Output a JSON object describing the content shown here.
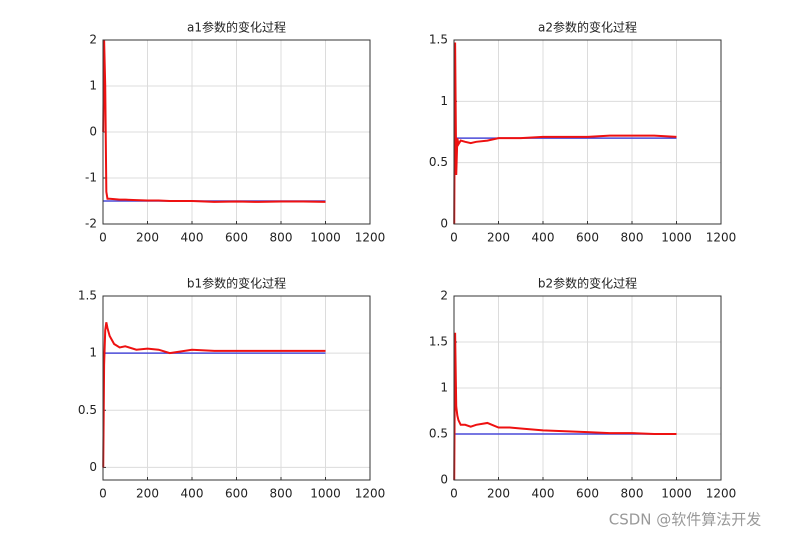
{
  "chart_data": [
    {
      "type": "line",
      "title": "a1参数的变化过程",
      "x": [
        1,
        5,
        10,
        15,
        20,
        30,
        50,
        75,
        100,
        150,
        200,
        250,
        300,
        400,
        500,
        600,
        700,
        800,
        900,
        1000
      ],
      "series": [
        {
          "color": "#4a4ad8",
          "values": [
            -1.5,
            -1.5,
            -1.5,
            -1.5,
            -1.5,
            -1.5,
            -1.5,
            -1.5,
            -1.5,
            -1.5,
            -1.5,
            -1.5,
            -1.5,
            -1.5,
            -1.5,
            -1.5,
            -1.5,
            -1.5,
            -1.5,
            -1.5
          ]
        },
        {
          "color": "#ee1111",
          "values": [
            0,
            2,
            1.0,
            -1.3,
            -1.45,
            -1.45,
            -1.46,
            -1.47,
            -1.47,
            -1.48,
            -1.49,
            -1.49,
            -1.5,
            -1.5,
            -1.52,
            -1.51,
            -1.52,
            -1.51,
            -1.51,
            -1.52
          ]
        }
      ],
      "xlim": [
        0,
        1200
      ],
      "xticks": [
        0,
        200,
        400,
        600,
        800,
        1000,
        1200
      ],
      "ylim": [
        -2,
        2
      ],
      "yticks": [
        -2,
        -1,
        0,
        1,
        2
      ],
      "grid": true
    },
    {
      "type": "line",
      "title": "a2参数的变化过程",
      "x": [
        1,
        5,
        10,
        15,
        20,
        30,
        50,
        75,
        100,
        150,
        200,
        250,
        300,
        400,
        500,
        600,
        700,
        800,
        900,
        1000
      ],
      "series": [
        {
          "color": "#4a4ad8",
          "values": [
            0.7,
            0.7,
            0.7,
            0.7,
            0.7,
            0.7,
            0.7,
            0.7,
            0.7,
            0.7,
            0.7,
            0.7,
            0.7,
            0.7,
            0.7,
            0.7,
            0.7,
            0.7,
            0.7,
            0.7
          ]
        },
        {
          "color": "#ee1111",
          "values": [
            0,
            1.48,
            0.4,
            0.7,
            0.65,
            0.68,
            0.67,
            0.66,
            0.67,
            0.68,
            0.7,
            0.7,
            0.7,
            0.71,
            0.71,
            0.71,
            0.72,
            0.72,
            0.72,
            0.71
          ]
        }
      ],
      "xlim": [
        0,
        1200
      ],
      "xticks": [
        0,
        200,
        400,
        600,
        800,
        1000,
        1200
      ],
      "ylim": [
        0,
        1.5
      ],
      "yticks": [
        0,
        0.5,
        1,
        1.5
      ],
      "grid": true
    },
    {
      "type": "line",
      "title": "b1参数的变化过程",
      "x": [
        1,
        5,
        10,
        15,
        20,
        30,
        50,
        75,
        100,
        150,
        200,
        250,
        300,
        400,
        500,
        600,
        700,
        800,
        900,
        1000
      ],
      "series": [
        {
          "color": "#4a4ad8",
          "values": [
            1,
            1,
            1,
            1,
            1,
            1,
            1,
            1,
            1,
            1,
            1,
            1,
            1,
            1,
            1,
            1,
            1,
            1,
            1,
            1
          ]
        },
        {
          "color": "#ee1111",
          "values": [
            0,
            0.9,
            1.2,
            1.27,
            1.22,
            1.15,
            1.08,
            1.05,
            1.06,
            1.03,
            1.04,
            1.03,
            1.0,
            1.03,
            1.02,
            1.02,
            1.02,
            1.02,
            1.02,
            1.02
          ]
        }
      ],
      "xlim": [
        0,
        1200
      ],
      "xticks": [
        0,
        200,
        400,
        600,
        800,
        1000,
        1200
      ],
      "ylim": [
        -0.11,
        1.5
      ],
      "yticks": [
        0,
        0.5,
        1,
        1.5
      ],
      "grid": true
    },
    {
      "type": "line",
      "title": "b2参数的变化过程",
      "x": [
        1,
        5,
        10,
        15,
        20,
        30,
        50,
        75,
        100,
        150,
        200,
        250,
        300,
        400,
        500,
        600,
        700,
        800,
        900,
        1000
      ],
      "series": [
        {
          "color": "#4a4ad8",
          "values": [
            0.5,
            0.5,
            0.5,
            0.5,
            0.5,
            0.5,
            0.5,
            0.5,
            0.5,
            0.5,
            0.5,
            0.5,
            0.5,
            0.5,
            0.5,
            0.5,
            0.5,
            0.5,
            0.5,
            0.5
          ]
        },
        {
          "color": "#ee1111",
          "values": [
            0,
            1.6,
            0.8,
            0.7,
            0.65,
            0.6,
            0.6,
            0.58,
            0.6,
            0.62,
            0.57,
            0.57,
            0.56,
            0.54,
            0.53,
            0.52,
            0.51,
            0.51,
            0.5,
            0.5
          ]
        }
      ],
      "xlim": [
        0,
        1200
      ],
      "xticks": [
        0,
        200,
        400,
        600,
        800,
        1000,
        1200
      ],
      "ylim": [
        0,
        2
      ],
      "yticks": [
        0,
        0.5,
        1,
        1.5,
        2
      ],
      "grid": true
    }
  ],
  "watermark": "CSDN @软件算法开发"
}
